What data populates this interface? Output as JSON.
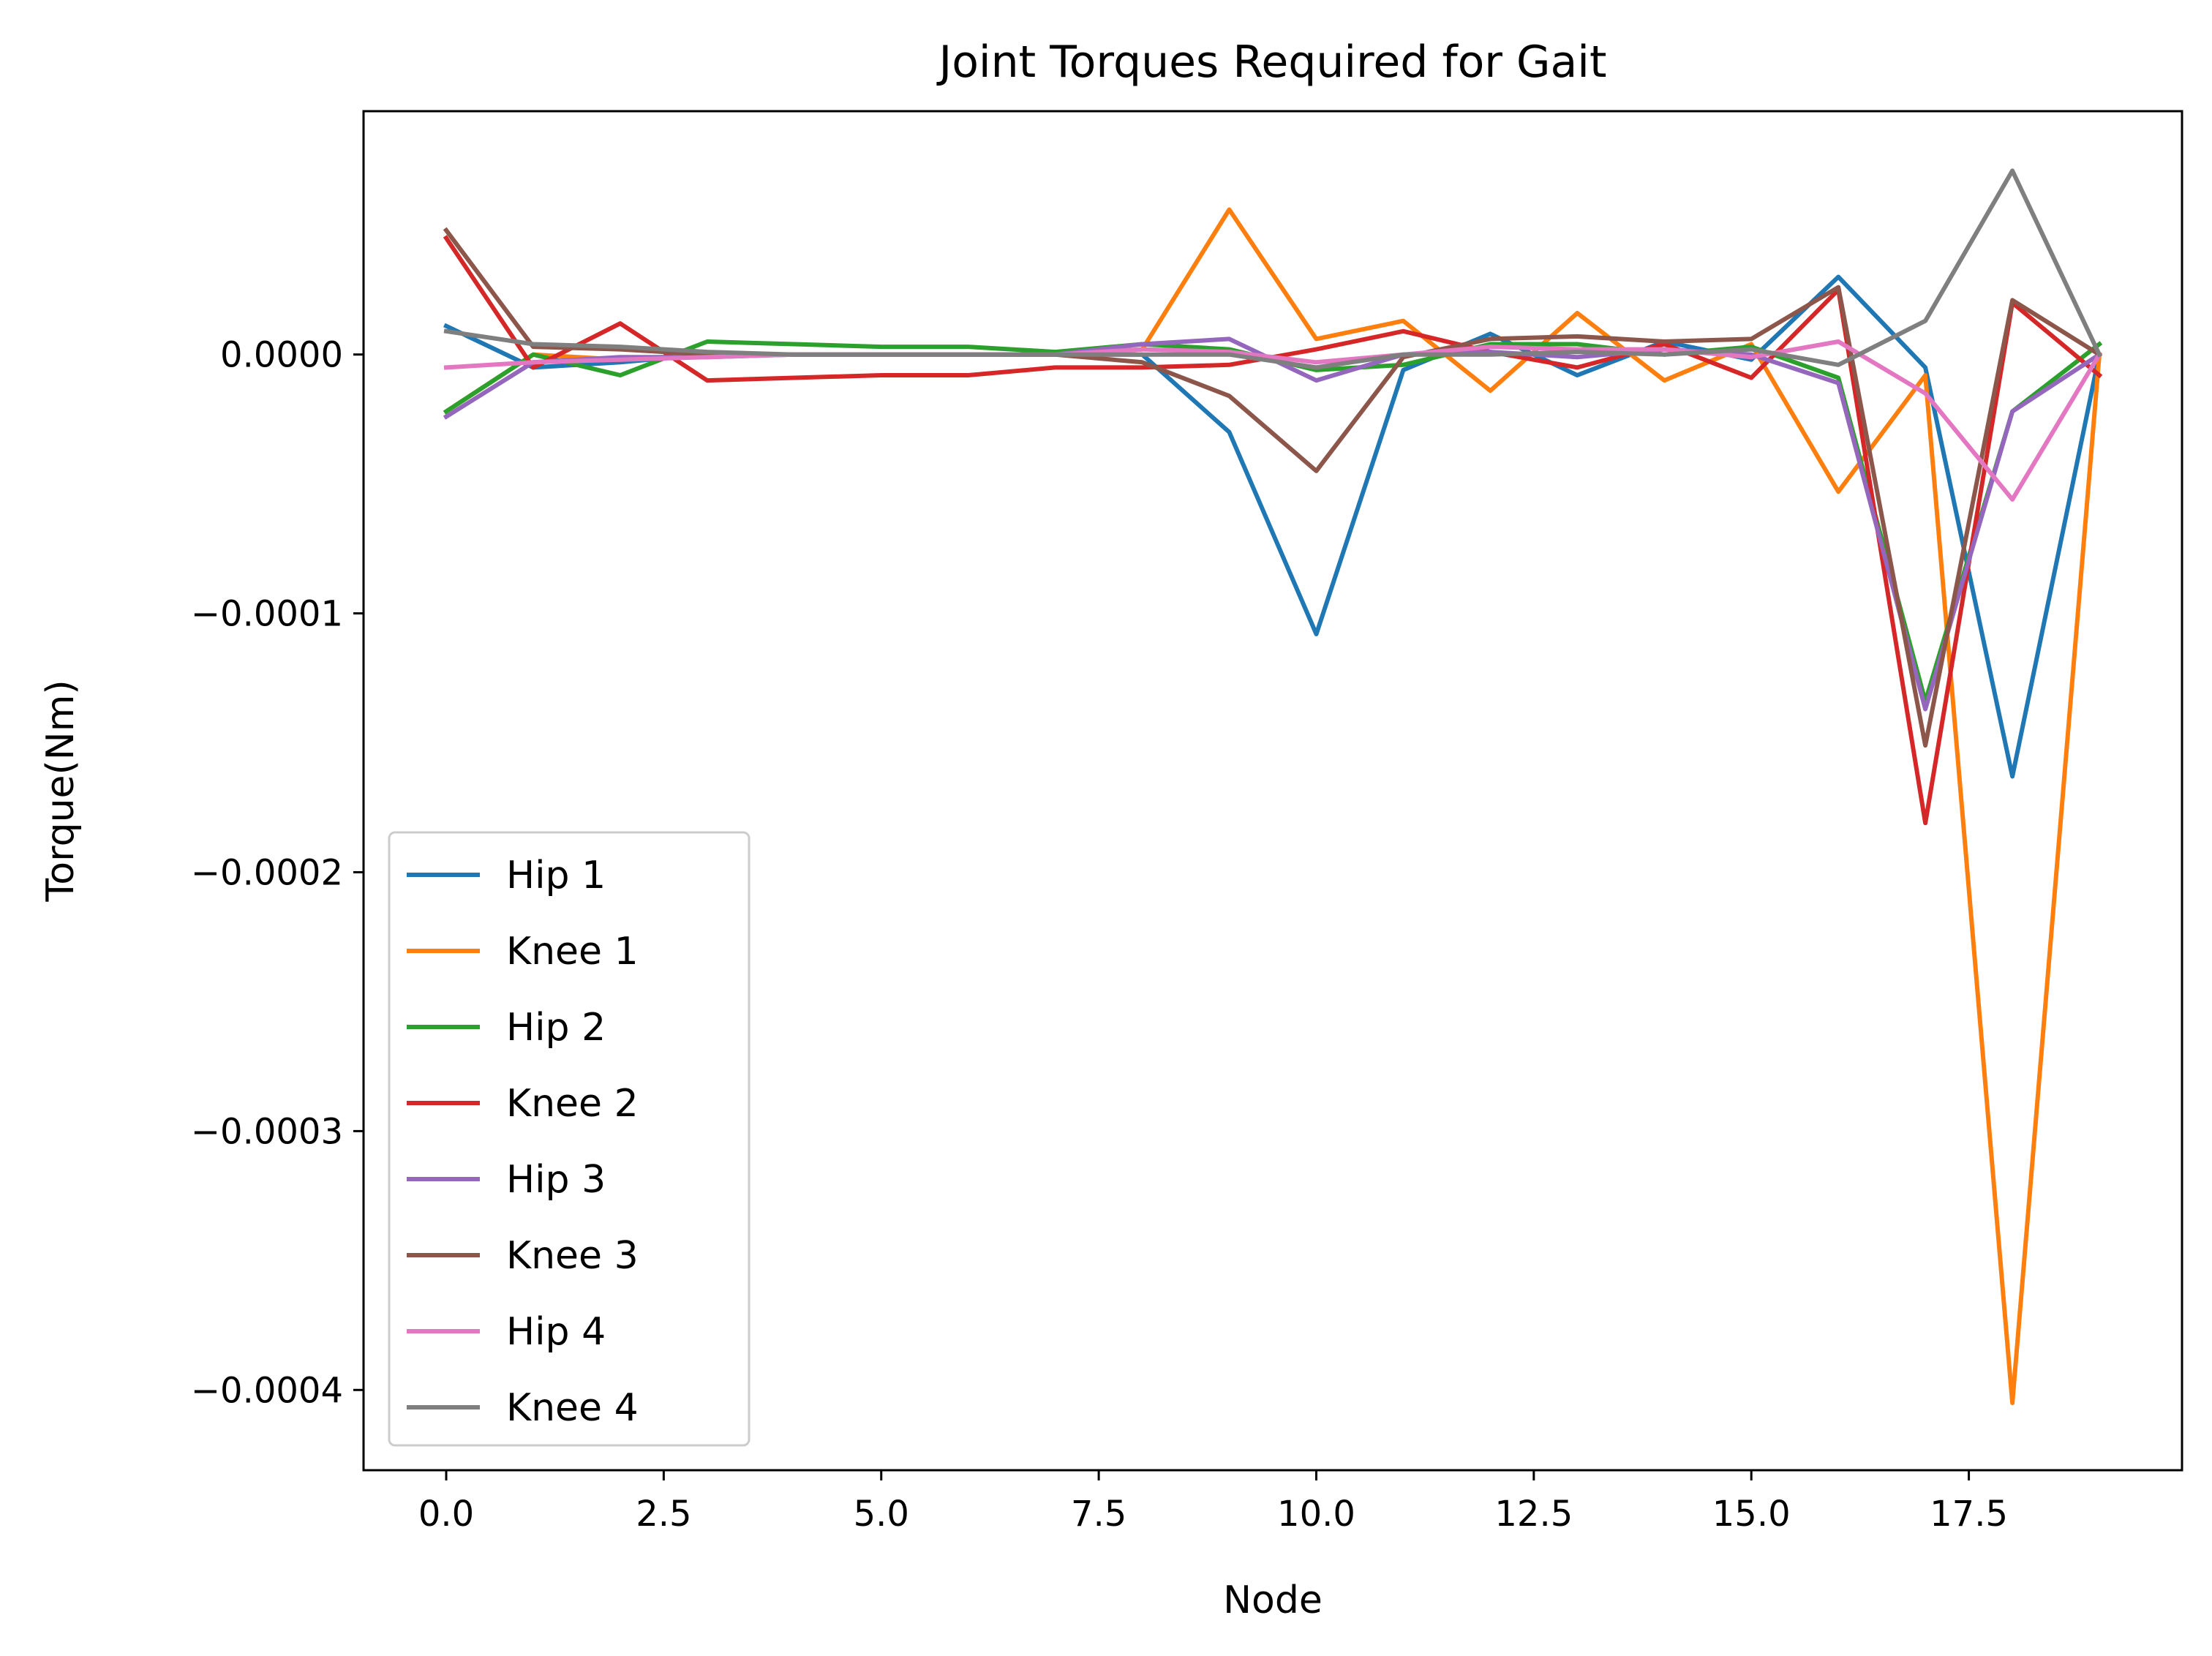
{
  "chart_data": {
    "type": "line",
    "title": "Joint Torques Required for Gait",
    "xlabel": "Node",
    "ylabel": "Torque(Nm)",
    "xlim": [
      -0.95,
      19.95
    ],
    "ylim": [
      -0.000431,
      9.4e-05
    ],
    "x_ticks": [
      0.0,
      2.5,
      5.0,
      7.5,
      10.0,
      12.5,
      15.0,
      17.5
    ],
    "x_tick_labels": [
      "0.0",
      "2.5",
      "5.0",
      "7.5",
      "10.0",
      "12.5",
      "15.0",
      "17.5"
    ],
    "y_ticks": [
      0.0,
      -0.0001,
      -0.0002,
      -0.0003,
      -0.0004
    ],
    "y_tick_labels": [
      "0.0000",
      "−0.0001",
      "−0.0002",
      "−0.0003",
      "−0.0004"
    ],
    "grid": false,
    "legend_position": "lower-left",
    "x": [
      0,
      1,
      2,
      3,
      4,
      5,
      6,
      7,
      8,
      9,
      10,
      11,
      12,
      13,
      14,
      15,
      16,
      17,
      18,
      19
    ],
    "series": [
      {
        "name": "Hip 1",
        "color": "#1f77b4",
        "values": [
          1.1e-05,
          -5e-06,
          -3e-06,
          0.0,
          0.0,
          0.0,
          0.0,
          0.0,
          0.0,
          -3e-05,
          -0.000108,
          -6e-06,
          8e-06,
          -8e-06,
          5e-06,
          -2e-06,
          3e-05,
          -5e-06,
          -0.000163,
          0.0
        ]
      },
      {
        "name": "Knee 1",
        "color": "#ff7f0e",
        "values": [
          -2.2e-05,
          0.0,
          -2e-06,
          0.0,
          0.0,
          0.0,
          0.0,
          0.0,
          2e-06,
          5.6e-05,
          6e-06,
          1.3e-05,
          -1.4e-05,
          1.6e-05,
          -1e-05,
          4e-06,
          -5.3e-05,
          -8e-06,
          -0.000405,
          0.0
        ]
      },
      {
        "name": "Hip 2",
        "color": "#2ca02c",
        "values": [
          -2.2e-05,
          0.0,
          -8e-06,
          5e-06,
          4e-06,
          3e-06,
          3e-06,
          1e-06,
          4e-06,
          2e-06,
          -6e-06,
          -4e-06,
          4e-06,
          4e-06,
          0.0,
          3e-06,
          -9e-06,
          -0.000134,
          -2.2e-05,
          4e-06
        ]
      },
      {
        "name": "Knee 2",
        "color": "#d62728",
        "values": [
          4.5e-05,
          -5e-06,
          1.2e-05,
          -1e-05,
          -9e-06,
          -8e-06,
          -8e-06,
          -5e-06,
          -5e-06,
          -4e-06,
          2e-06,
          9e-06,
          1e-06,
          -5e-06,
          4e-06,
          -9e-06,
          2.5e-05,
          -0.000181,
          2e-05,
          -8e-06
        ]
      },
      {
        "name": "Hip 3",
        "color": "#9467bd",
        "values": [
          -2.4e-05,
          -3e-06,
          -1e-06,
          -1e-06,
          0.0,
          0.0,
          0.0,
          0.0,
          4e-06,
          6e-06,
          -1e-05,
          0.0,
          1e-06,
          -1e-06,
          2e-06,
          0.0,
          -1.1e-05,
          -0.000137,
          -2.2e-05,
          0.0
        ]
      },
      {
        "name": "Knee 3",
        "color": "#8c564b",
        "values": [
          4.8e-05,
          3e-06,
          2e-06,
          0.0,
          0.0,
          0.0,
          0.0,
          0.0,
          -3e-06,
          -1.6e-05,
          -4.5e-05,
          -1e-06,
          6e-06,
          7e-06,
          5e-06,
          6e-06,
          2.6e-05,
          -0.000151,
          2.1e-05,
          0.0
        ]
      },
      {
        "name": "Hip 4",
        "color": "#e377c2",
        "values": [
          -5e-06,
          -3e-06,
          -2e-06,
          -1e-06,
          0.0,
          0.0,
          0.0,
          0.0,
          2e-06,
          1e-06,
          -3e-06,
          0.0,
          3e-06,
          2e-06,
          2e-06,
          -1e-06,
          5e-06,
          -1.5e-05,
          -5.6e-05,
          0.0
        ]
      },
      {
        "name": "Knee 4",
        "color": "#7f7f7f",
        "values": [
          9e-06,
          4e-06,
          3e-06,
          1e-06,
          0.0,
          0.0,
          0.0,
          0.0,
          0.0,
          0.0,
          -5e-06,
          0.0,
          0.0,
          1e-06,
          0.0,
          2e-06,
          -4e-06,
          1.3e-05,
          7.1e-05,
          0.0
        ]
      }
    ]
  }
}
